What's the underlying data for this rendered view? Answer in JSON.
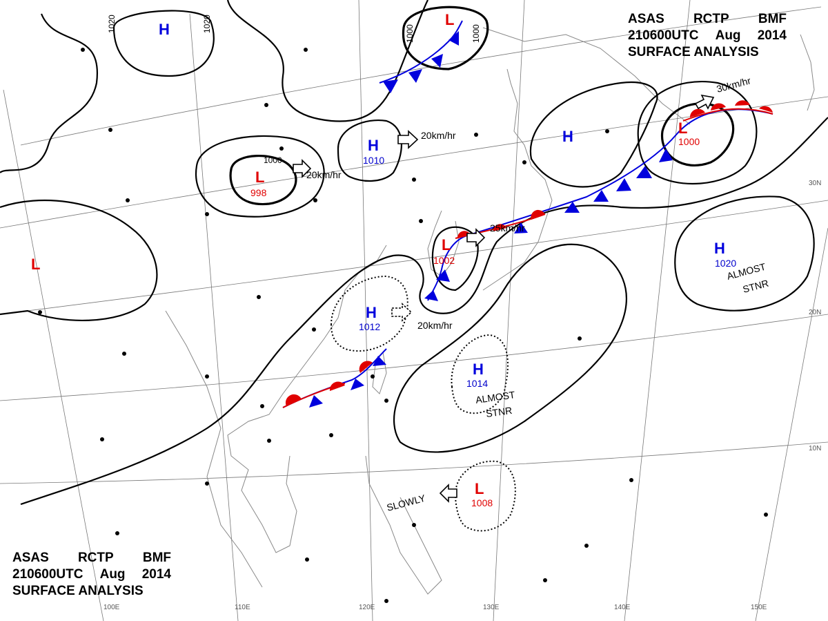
{
  "title": {
    "line1": [
      "ASAS",
      "RCTP",
      "BMF"
    ],
    "line2": [
      "210600UTC",
      "Aug",
      "2014"
    ],
    "line3": "SURFACE ANALYSIS"
  },
  "grid_labels": {
    "lon": [
      "100E",
      "110E",
      "120E",
      "130E",
      "140E",
      "150E"
    ],
    "lat": [
      "30N",
      "20N",
      "10N"
    ]
  },
  "pressure_centers": [
    {
      "type": "H",
      "value": ""
    },
    {
      "type": "H",
      "value": "1010"
    },
    {
      "type": "H",
      "value": "1012"
    },
    {
      "type": "H",
      "value": "1014"
    },
    {
      "type": "H",
      "value": ""
    },
    {
      "type": "H",
      "value": "1020"
    },
    {
      "type": "L",
      "value": ""
    },
    {
      "type": "L",
      "value": "998"
    },
    {
      "type": "L",
      "value": "1002"
    },
    {
      "type": "L",
      "value": "1000"
    },
    {
      "type": "L",
      "value": ""
    },
    {
      "type": "L",
      "value": "1008"
    }
  ],
  "isobar_labels": [
    "1020",
    "1020",
    "1000",
    "1000",
    "1000"
  ],
  "movements": [
    "20km/hr",
    "20km/hr",
    "25km/hr",
    "20km/hr",
    "30km/hr",
    "SLOWLY"
  ],
  "notes": [
    {
      "line1": "ALMOST",
      "line2": "STNR"
    },
    {
      "line1": "ALMOST",
      "line2": "STNR"
    }
  ],
  "colors": {
    "high": "#0000dd",
    "low": "#e00000",
    "isobar": "#000000",
    "grid": "#777777",
    "coast": "#888888"
  }
}
